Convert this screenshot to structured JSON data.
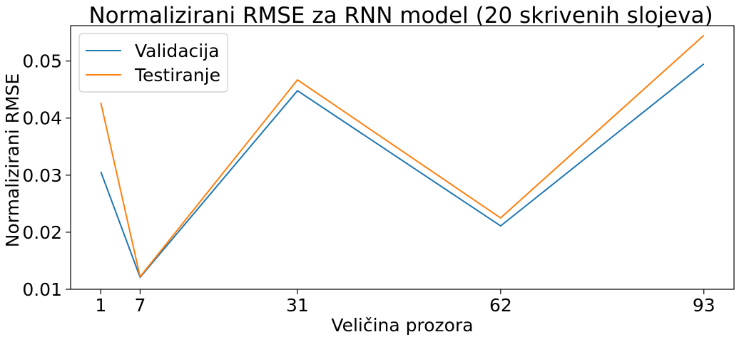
{
  "chart_data": {
    "type": "line",
    "title": "Normalizirani RMSE za RNN model (20 skrivenih slojeva)",
    "xlabel": "Veličina prozora",
    "ylabel": "Normalizirani RMSE",
    "x": [
      1,
      7,
      31,
      62,
      93
    ],
    "x_ticks": [
      1,
      7,
      31,
      62,
      93
    ],
    "y_ticks": [
      "0.01",
      "0.02",
      "0.03",
      "0.04",
      "0.05"
    ],
    "xlim": [
      -3.6,
      97.6
    ],
    "ylim": [
      0.01,
      0.0562
    ],
    "grid": false,
    "legend_position": "upper-left",
    "series": [
      {
        "name": "Validacija",
        "color": "#1f77b4",
        "values": [
          0.0306,
          0.0121,
          0.0448,
          0.0211,
          0.0495
        ]
      },
      {
        "name": "Testiranje",
        "color": "#ff7f0e",
        "values": [
          0.0427,
          0.0122,
          0.0467,
          0.0225,
          0.0545
        ]
      }
    ]
  }
}
